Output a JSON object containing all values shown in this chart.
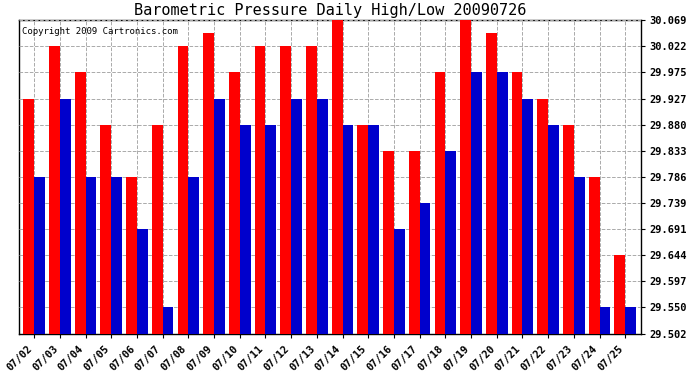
{
  "title": "Barometric Pressure Daily High/Low 20090726",
  "copyright": "Copyright 2009 Cartronics.com",
  "dates": [
    "07/02",
    "07/03",
    "07/04",
    "07/05",
    "07/06",
    "07/07",
    "07/08",
    "07/09",
    "07/10",
    "07/11",
    "07/12",
    "07/13",
    "07/14",
    "07/15",
    "07/16",
    "07/17",
    "07/18",
    "07/19",
    "07/20",
    "07/21",
    "07/22",
    "07/23",
    "07/24",
    "07/25"
  ],
  "highs": [
    29.927,
    30.022,
    29.975,
    29.88,
    29.786,
    29.88,
    30.022,
    30.046,
    29.975,
    30.022,
    30.022,
    30.022,
    30.069,
    29.88,
    29.833,
    29.833,
    29.975,
    30.069,
    30.046,
    29.975,
    29.927,
    29.88,
    29.786,
    29.644
  ],
  "lows": [
    29.786,
    29.927,
    29.786,
    29.786,
    29.691,
    29.55,
    29.786,
    29.927,
    29.88,
    29.88,
    29.927,
    29.927,
    29.88,
    29.88,
    29.691,
    29.739,
    29.833,
    29.975,
    29.975,
    29.927,
    29.88,
    29.786,
    29.55,
    29.55
  ],
  "ymin": 29.502,
  "ymax": 30.069,
  "yticks": [
    29.502,
    29.55,
    29.597,
    29.644,
    29.691,
    29.739,
    29.786,
    29.833,
    29.88,
    29.927,
    29.975,
    30.022,
    30.069
  ],
  "high_color": "#ff0000",
  "low_color": "#0000cc",
  "bg_color": "#ffffff",
  "plot_bg_color": "#ffffff",
  "grid_color": "#aaaaaa",
  "title_fontsize": 11,
  "tick_fontsize": 7.5,
  "copyright_fontsize": 6.5
}
